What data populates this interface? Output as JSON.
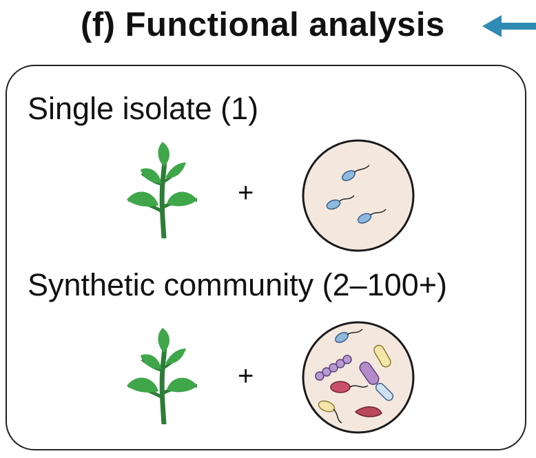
{
  "title": "(f) Functional analysis",
  "colors": {
    "arrow": "#2e8bb4",
    "leaf": "#3fa64a",
    "leaf_dark": "#2d7d36",
    "dish_fill": "#f4e8de",
    "dish_border": "#1a1a1a"
  },
  "rows": [
    {
      "label": "Single isolate (1)",
      "operator": "+"
    },
    {
      "label": "Synthetic community (2–100+)",
      "operator": "+"
    }
  ],
  "icons": [
    "arrow-left-icon",
    "plant-icon",
    "petri-dish-icon",
    "bacteria-icon"
  ]
}
